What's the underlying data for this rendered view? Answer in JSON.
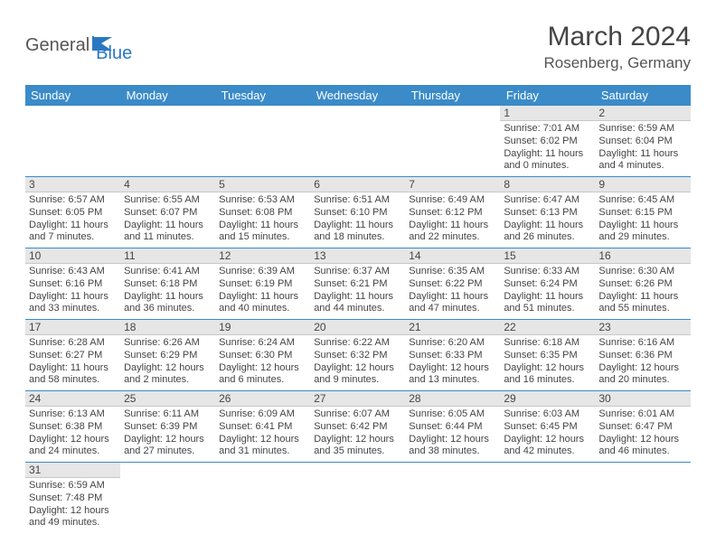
{
  "logo": {
    "part1": "General",
    "part2": "Blue"
  },
  "title": "March 2024",
  "location": "Rosenberg, Germany",
  "colors": {
    "header_bg": "#3b8bc9",
    "header_text": "#ffffff",
    "daynum_bg": "#e6e6e6",
    "border": "#3b8bc9",
    "text": "#444444",
    "logo_gray": "#555555",
    "logo_blue": "#2b78c2",
    "page_bg": "#ffffff"
  },
  "day_headers": [
    "Sunday",
    "Monday",
    "Tuesday",
    "Wednesday",
    "Thursday",
    "Friday",
    "Saturday"
  ],
  "weeks": [
    [
      null,
      null,
      null,
      null,
      null,
      {
        "n": "1",
        "sr": "Sunrise: 7:01 AM",
        "ss": "Sunset: 6:02 PM",
        "dl": "Daylight: 11 hours and 0 minutes."
      },
      {
        "n": "2",
        "sr": "Sunrise: 6:59 AM",
        "ss": "Sunset: 6:04 PM",
        "dl": "Daylight: 11 hours and 4 minutes."
      }
    ],
    [
      {
        "n": "3",
        "sr": "Sunrise: 6:57 AM",
        "ss": "Sunset: 6:05 PM",
        "dl": "Daylight: 11 hours and 7 minutes."
      },
      {
        "n": "4",
        "sr": "Sunrise: 6:55 AM",
        "ss": "Sunset: 6:07 PM",
        "dl": "Daylight: 11 hours and 11 minutes."
      },
      {
        "n": "5",
        "sr": "Sunrise: 6:53 AM",
        "ss": "Sunset: 6:08 PM",
        "dl": "Daylight: 11 hours and 15 minutes."
      },
      {
        "n": "6",
        "sr": "Sunrise: 6:51 AM",
        "ss": "Sunset: 6:10 PM",
        "dl": "Daylight: 11 hours and 18 minutes."
      },
      {
        "n": "7",
        "sr": "Sunrise: 6:49 AM",
        "ss": "Sunset: 6:12 PM",
        "dl": "Daylight: 11 hours and 22 minutes."
      },
      {
        "n": "8",
        "sr": "Sunrise: 6:47 AM",
        "ss": "Sunset: 6:13 PM",
        "dl": "Daylight: 11 hours and 26 minutes."
      },
      {
        "n": "9",
        "sr": "Sunrise: 6:45 AM",
        "ss": "Sunset: 6:15 PM",
        "dl": "Daylight: 11 hours and 29 minutes."
      }
    ],
    [
      {
        "n": "10",
        "sr": "Sunrise: 6:43 AM",
        "ss": "Sunset: 6:16 PM",
        "dl": "Daylight: 11 hours and 33 minutes."
      },
      {
        "n": "11",
        "sr": "Sunrise: 6:41 AM",
        "ss": "Sunset: 6:18 PM",
        "dl": "Daylight: 11 hours and 36 minutes."
      },
      {
        "n": "12",
        "sr": "Sunrise: 6:39 AM",
        "ss": "Sunset: 6:19 PM",
        "dl": "Daylight: 11 hours and 40 minutes."
      },
      {
        "n": "13",
        "sr": "Sunrise: 6:37 AM",
        "ss": "Sunset: 6:21 PM",
        "dl": "Daylight: 11 hours and 44 minutes."
      },
      {
        "n": "14",
        "sr": "Sunrise: 6:35 AM",
        "ss": "Sunset: 6:22 PM",
        "dl": "Daylight: 11 hours and 47 minutes."
      },
      {
        "n": "15",
        "sr": "Sunrise: 6:33 AM",
        "ss": "Sunset: 6:24 PM",
        "dl": "Daylight: 11 hours and 51 minutes."
      },
      {
        "n": "16",
        "sr": "Sunrise: 6:30 AM",
        "ss": "Sunset: 6:26 PM",
        "dl": "Daylight: 11 hours and 55 minutes."
      }
    ],
    [
      {
        "n": "17",
        "sr": "Sunrise: 6:28 AM",
        "ss": "Sunset: 6:27 PM",
        "dl": "Daylight: 11 hours and 58 minutes."
      },
      {
        "n": "18",
        "sr": "Sunrise: 6:26 AM",
        "ss": "Sunset: 6:29 PM",
        "dl": "Daylight: 12 hours and 2 minutes."
      },
      {
        "n": "19",
        "sr": "Sunrise: 6:24 AM",
        "ss": "Sunset: 6:30 PM",
        "dl": "Daylight: 12 hours and 6 minutes."
      },
      {
        "n": "20",
        "sr": "Sunrise: 6:22 AM",
        "ss": "Sunset: 6:32 PM",
        "dl": "Daylight: 12 hours and 9 minutes."
      },
      {
        "n": "21",
        "sr": "Sunrise: 6:20 AM",
        "ss": "Sunset: 6:33 PM",
        "dl": "Daylight: 12 hours and 13 minutes."
      },
      {
        "n": "22",
        "sr": "Sunrise: 6:18 AM",
        "ss": "Sunset: 6:35 PM",
        "dl": "Daylight: 12 hours and 16 minutes."
      },
      {
        "n": "23",
        "sr": "Sunrise: 6:16 AM",
        "ss": "Sunset: 6:36 PM",
        "dl": "Daylight: 12 hours and 20 minutes."
      }
    ],
    [
      {
        "n": "24",
        "sr": "Sunrise: 6:13 AM",
        "ss": "Sunset: 6:38 PM",
        "dl": "Daylight: 12 hours and 24 minutes."
      },
      {
        "n": "25",
        "sr": "Sunrise: 6:11 AM",
        "ss": "Sunset: 6:39 PM",
        "dl": "Daylight: 12 hours and 27 minutes."
      },
      {
        "n": "26",
        "sr": "Sunrise: 6:09 AM",
        "ss": "Sunset: 6:41 PM",
        "dl": "Daylight: 12 hours and 31 minutes."
      },
      {
        "n": "27",
        "sr": "Sunrise: 6:07 AM",
        "ss": "Sunset: 6:42 PM",
        "dl": "Daylight: 12 hours and 35 minutes."
      },
      {
        "n": "28",
        "sr": "Sunrise: 6:05 AM",
        "ss": "Sunset: 6:44 PM",
        "dl": "Daylight: 12 hours and 38 minutes."
      },
      {
        "n": "29",
        "sr": "Sunrise: 6:03 AM",
        "ss": "Sunset: 6:45 PM",
        "dl": "Daylight: 12 hours and 42 minutes."
      },
      {
        "n": "30",
        "sr": "Sunrise: 6:01 AM",
        "ss": "Sunset: 6:47 PM",
        "dl": "Daylight: 12 hours and 46 minutes."
      }
    ],
    [
      {
        "n": "31",
        "sr": "Sunrise: 6:59 AM",
        "ss": "Sunset: 7:48 PM",
        "dl": "Daylight: 12 hours and 49 minutes."
      },
      null,
      null,
      null,
      null,
      null,
      null
    ]
  ]
}
